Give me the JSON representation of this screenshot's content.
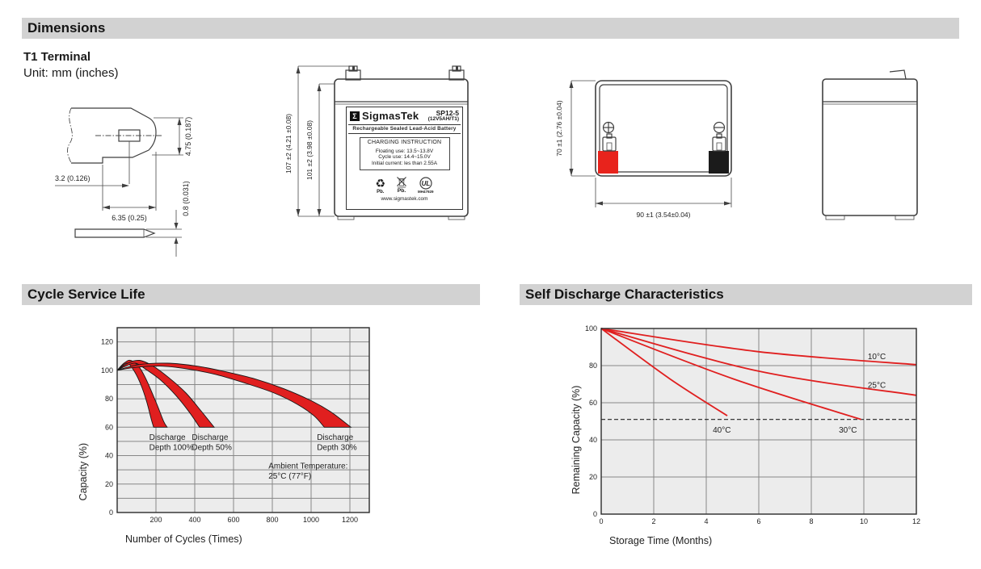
{
  "page": {
    "section_bar_color": "#d2d2d2",
    "headers": {
      "dimensions": "Dimensions",
      "cycle": "Cycle Service Life",
      "self_discharge": "Self Discharge Characteristics"
    },
    "terminal_type": "T1 Terminal",
    "unit_note": "Unit: mm (inches)"
  },
  "drawings": {
    "terminal_detail": {
      "height_dim": "4.75 (0.187)",
      "hole_dim": "3.2 (0.126)",
      "width_dim": "6.35 (0.25)",
      "thickness_dim": "0.8 (0.031)"
    },
    "front_view": {
      "overall_height_dim": "107 ±2 (4.21 ±0.08)",
      "case_height_dim": "101 ±2 (3.98 ±0.08)",
      "label": {
        "logo_glyph": "Σ",
        "brand": "SigmasTek",
        "model": "SP12-5",
        "rating": "(12V5AH/T1)",
        "subtitle": "Rechargeable Sealed Lead-Acid Battery",
        "charging_title": "CHARGING INSTRUCTION",
        "charging_lines": [
          "Floating use: 13.5~13.8V",
          "Cycle use: 14.4~15.0V",
          "Initial current: les than 2.55A"
        ],
        "recycle_glyph": "♻",
        "pb_recycle": "Pb.",
        "pb_disposal": "Pb.",
        "ul_text": "UL",
        "ul_code": "MH47929",
        "website": "www.sigmastek.com"
      }
    },
    "top_view": {
      "depth_dim": "70 ±1 (2.76 ±0.04)",
      "width_dim": "90 ±1 (3.54±0.04)",
      "positive_terminal_color": "#e8231c",
      "negative_terminal_color": "#1b1b1b"
    }
  },
  "chart_data": [
    {
      "id": "cycle",
      "type": "area",
      "title": "Cycle Service Life",
      "xlabel": "Number of Cycles (Times)",
      "ylabel": "Capacity (%)",
      "xlim": [
        0,
        1300
      ],
      "ylim": [
        0,
        130
      ],
      "x_ticks": [
        200,
        400,
        600,
        800,
        1000,
        1200
      ],
      "y_ticks": [
        0,
        20,
        40,
        60,
        80,
        100,
        120
      ],
      "x_grid_step": 200,
      "y_grid_step": 10,
      "grid": true,
      "plot_bg": "#ececec",
      "band_fill": "#e01f1f",
      "band_stroke": "#161616",
      "bands": [
        {
          "name": "Discharge Depth 100%",
          "upper": [
            [
              0,
              100
            ],
            [
              35,
              105
            ],
            [
              70,
              107
            ],
            [
              115,
              102
            ],
            [
              155,
              92
            ],
            [
              205,
              76
            ],
            [
              240,
              64
            ],
            [
              258,
              60
            ]
          ],
          "lower": [
            [
              0,
              100
            ],
            [
              25,
              103
            ],
            [
              55,
              105
            ],
            [
              90,
              99
            ],
            [
              122,
              90
            ],
            [
              152,
              78
            ],
            [
              175,
              66
            ],
            [
              188,
              60
            ]
          ]
        },
        {
          "name": "Discharge Depth 50%",
          "upper": [
            [
              0,
              100
            ],
            [
              55,
              105
            ],
            [
              115,
              107
            ],
            [
              185,
              103
            ],
            [
              265,
              95
            ],
            [
              355,
              84
            ],
            [
              435,
              71
            ],
            [
              500,
              60
            ]
          ],
          "lower": [
            [
              0,
              100
            ],
            [
              45,
              103
            ],
            [
              95,
              105
            ],
            [
              155,
              100
            ],
            [
              225,
              93
            ],
            [
              305,
              82
            ],
            [
              375,
              70
            ],
            [
              425,
              60
            ]
          ]
        },
        {
          "name": "Discharge Depth 30%",
          "upper": [
            [
              0,
              100
            ],
            [
              110,
              104
            ],
            [
              260,
              105
            ],
            [
              410,
              103
            ],
            [
              560,
              99
            ],
            [
              710,
              94
            ],
            [
              860,
              87
            ],
            [
              1010,
              78
            ],
            [
              1110,
              70
            ],
            [
              1205,
              60
            ]
          ],
          "lower": [
            [
              0,
              100
            ],
            [
              90,
              102
            ],
            [
              220,
              103
            ],
            [
              360,
              101
            ],
            [
              510,
              97
            ],
            [
              660,
              91
            ],
            [
              810,
              84
            ],
            [
              930,
              76
            ],
            [
              1015,
              68
            ],
            [
              1068,
              60
            ]
          ]
        }
      ],
      "annotations": [
        {
          "lines": [
            "Discharge",
            "Depth 100%"
          ],
          "x": 165,
          "y": 51
        },
        {
          "lines": [
            "Discharge",
            "Depth 50%"
          ],
          "x": 385,
          "y": 51
        },
        {
          "lines": [
            "Discharge",
            "Depth 30%"
          ],
          "x": 1030,
          "y": 51
        },
        {
          "lines": [
            "Ambient Temperature:",
            "25°C (77°F)"
          ],
          "x": 780,
          "y": 31
        }
      ]
    },
    {
      "id": "self_discharge",
      "type": "line",
      "title": "Self Discharge Characteristics",
      "xlabel": "Storage Time (Months)",
      "ylabel": "Remaining Capacity (%)",
      "xlim": [
        0,
        12
      ],
      "ylim": [
        0,
        100
      ],
      "x_ticks": [
        0,
        2,
        4,
        6,
        8,
        10,
        12
      ],
      "y_ticks": [
        0,
        20,
        40,
        60,
        80,
        100
      ],
      "x_grid_step": 2,
      "y_grid_step": 20,
      "grid": true,
      "plot_bg": "#ececec",
      "line_color": "#e01f1f",
      "series": [
        {
          "name": "10°C",
          "points": [
            [
              0,
              100
            ],
            [
              6,
              87.5
            ],
            [
              12,
              80.5
            ]
          ],
          "label_x": 10.15,
          "label_y": 83.5
        },
        {
          "name": "25°C",
          "points": [
            [
              0,
              100
            ],
            [
              6,
              77
            ],
            [
              12,
              64
            ]
          ],
          "label_x": 10.15,
          "label_y": 68
        },
        {
          "name": "30°C",
          "points": [
            [
              0,
              100
            ],
            [
              5,
              73
            ],
            [
              9.9,
              51
            ]
          ],
          "label_x": 9.05,
          "label_y": 44
        },
        {
          "name": "40°C",
          "points": [
            [
              0,
              100
            ],
            [
              2.6,
              73
            ],
            [
              4.8,
              53
            ]
          ],
          "label_x": 4.25,
          "label_y": 44
        }
      ],
      "ref_line": {
        "y": 51,
        "style": "dashed"
      }
    }
  ]
}
